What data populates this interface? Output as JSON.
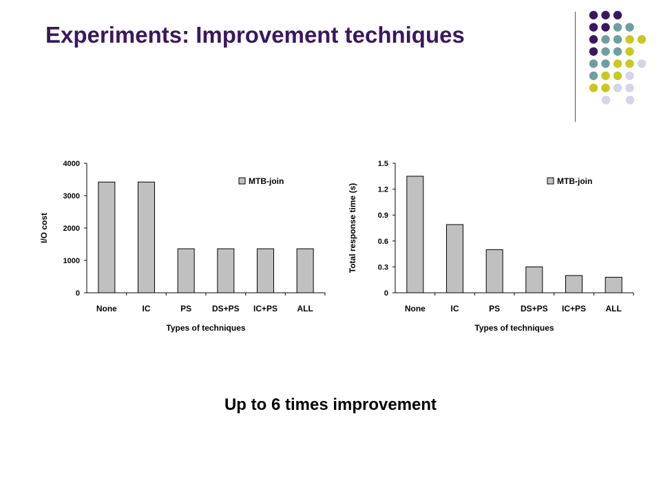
{
  "slide": {
    "title": "Experiments: Improvement techniques",
    "caption": "Up to 6 times improvement"
  },
  "decoration": {
    "dot_rows": [
      [
        "purple",
        "purple",
        "purple"
      ],
      [
        "purple",
        "purple",
        "teal",
        "teal"
      ],
      [
        "purple",
        "teal",
        "teal",
        "lime",
        "lime"
      ],
      [
        "purple",
        "teal",
        "teal",
        "lime"
      ],
      [
        "teal",
        "teal",
        "lime",
        "lime",
        "lavender"
      ],
      [
        "teal",
        "lime",
        "lime",
        "lavender"
      ],
      [
        "lime",
        "lime",
        "lavender",
        "lavender"
      ],
      [
        "lavender",
        "lavender"
      ]
    ],
    "colors": {
      "purple": "#3b1760",
      "teal": "#6f9ea0",
      "lime": "#c8c820",
      "lavender": "#d4d4ea"
    }
  },
  "chart_data": [
    {
      "type": "bar",
      "categories": [
        "None",
        "IC",
        "PS",
        "DS+PS",
        "IC+PS",
        "ALL"
      ],
      "series": [
        {
          "name": "MTB-join",
          "values": [
            3420,
            3420,
            1360,
            1360,
            1360,
            1360
          ]
        }
      ],
      "xlabel": "Types of techniques",
      "ylabel": "I/O cost",
      "ylim": [
        0,
        4000
      ],
      "yticks": [
        "0",
        "1000",
        "2000",
        "3000",
        "4000"
      ],
      "ytick_values": [
        0,
        1000,
        2000,
        3000,
        4000
      ],
      "bar_color": "#c0c0c0",
      "legend_position": "top-right",
      "grid": false
    },
    {
      "type": "bar",
      "categories": [
        "None",
        "IC",
        "PS",
        "DS+PS",
        "IC+PS",
        "ALL"
      ],
      "series": [
        {
          "name": "MTB-join",
          "values": [
            1.35,
            0.79,
            0.5,
            0.3,
            0.2,
            0.18
          ]
        }
      ],
      "xlabel": "Types of techniques",
      "ylabel": "Total response time (s)",
      "ylim": [
        0,
        1.5
      ],
      "yticks": [
        "0",
        "0.3",
        "0.6",
        "0.9",
        "1.2",
        "1.5"
      ],
      "ytick_values": [
        0,
        0.3,
        0.6,
        0.9,
        1.2,
        1.5
      ],
      "bar_color": "#c0c0c0",
      "legend_position": "top-right",
      "grid": false
    }
  ]
}
